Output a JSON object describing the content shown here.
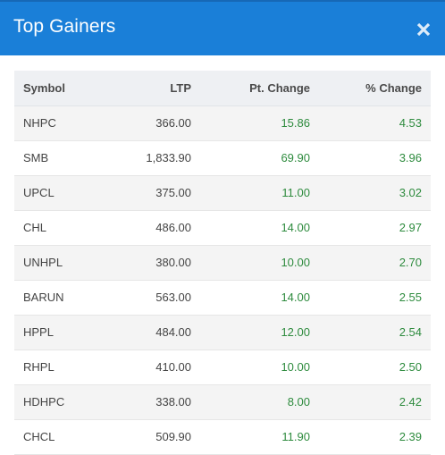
{
  "header": {
    "title": "Top Gainers",
    "close_icon": "close-icon"
  },
  "colors": {
    "header_bg": "#1a7fd8",
    "positive": "#2e8b3e"
  },
  "table": {
    "columns": [
      "Symbol",
      "LTP",
      "Pt. Change",
      "% Change"
    ],
    "rows": [
      {
        "symbol": "NHPC",
        "ltp": "366.00",
        "pt_change": "15.86",
        "pct_change": "4.53"
      },
      {
        "symbol": "SMB",
        "ltp": "1,833.90",
        "pt_change": "69.90",
        "pct_change": "3.96"
      },
      {
        "symbol": "UPCL",
        "ltp": "375.00",
        "pt_change": "11.00",
        "pct_change": "3.02"
      },
      {
        "symbol": "CHL",
        "ltp": "486.00",
        "pt_change": "14.00",
        "pct_change": "2.97"
      },
      {
        "symbol": "UNHPL",
        "ltp": "380.00",
        "pt_change": "10.00",
        "pct_change": "2.70"
      },
      {
        "symbol": "BARUN",
        "ltp": "563.00",
        "pt_change": "14.00",
        "pct_change": "2.55"
      },
      {
        "symbol": "HPPL",
        "ltp": "484.00",
        "pt_change": "12.00",
        "pct_change": "2.54"
      },
      {
        "symbol": "RHPL",
        "ltp": "410.00",
        "pt_change": "10.00",
        "pct_change": "2.50"
      },
      {
        "symbol": "HDHPC",
        "ltp": "338.00",
        "pt_change": "8.00",
        "pct_change": "2.42"
      },
      {
        "symbol": "CHCL",
        "ltp": "509.90",
        "pt_change": "11.90",
        "pct_change": "2.39"
      }
    ]
  }
}
